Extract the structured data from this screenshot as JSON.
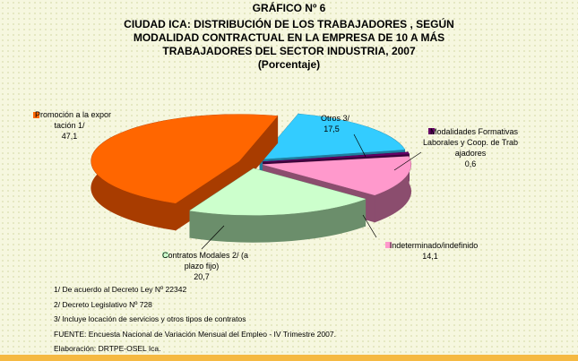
{
  "chart_data": {
    "type": "pie",
    "title": "GRÁFICO Nº 6",
    "subtitle": [
      "CIUDAD ICA: DISTRIBUCIÓN DE LOS TRABAJADORES , SEGÚN",
      "MODALIDAD CONTRACTUAL EN LA EMPRESA DE 10 A MÁS",
      "TRABAJADORES DEL SECTOR INDUSTRIA, 2007"
    ],
    "unit_note": "(Porcentaje)",
    "categories": [
      "Otros 3/",
      "Modalidades Formativas Laborales y Coop. de Trabajadores",
      "Indeterminado/indefinido",
      "Contratos Modales 2/ (a plazo fijo)",
      "Promoción a la exportación 1/"
    ],
    "values": [
      17.5,
      0.6,
      14.1,
      20.7,
      47.1
    ],
    "value_labels": [
      "17,5",
      "0,6",
      "14,1",
      "20,7",
      "47,1"
    ],
    "colors": [
      "#33ccff",
      "#660066",
      "#ff99cc",
      "#ccffcc",
      "#ff6600"
    ],
    "side_colors": [
      "#1f7f9f",
      "#3a003a",
      "#8b4d6e",
      "#6b8e6b",
      "#a83c00"
    ],
    "notes": [
      "1/ De acuerdo al Decreto Ley  Nº 22342",
      "2/ Decreto Legislativo Nº 728",
      "3/ Incluye locación de servicios  y otros tipos de contratos",
      "FUENTE: Encuesta Nacional de Variación Mensual del Empleo - IV Trimestre 2007.",
      "Elaboración: DRTPE-OSEL Ica."
    ]
  }
}
